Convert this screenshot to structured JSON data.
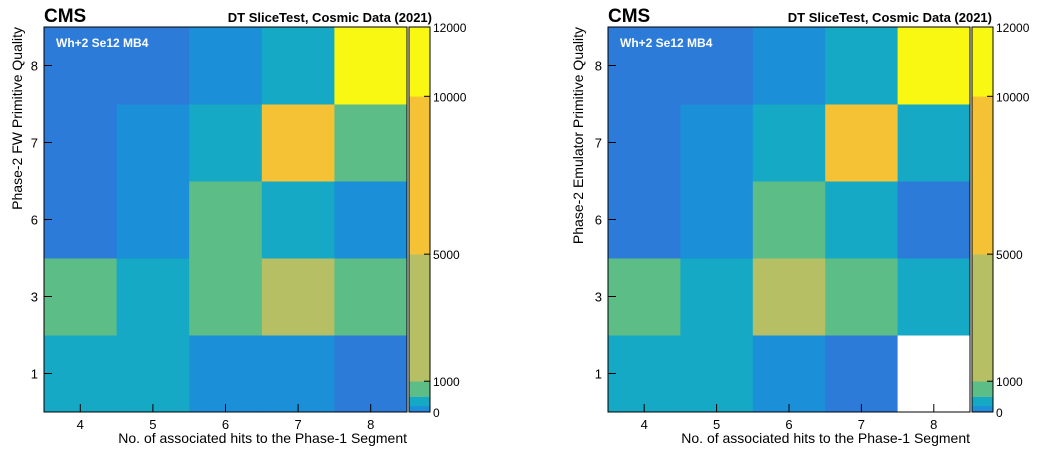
{
  "chart_data": [
    {
      "type": "heatmap",
      "experiment_label": "CMS",
      "header": "DT SliceTest, Cosmic Data (2021)",
      "tag": "Wh+2 Se12 MB4",
      "xlabel": "No. of associated hits to the Phase-1 Segment",
      "ylabel": "Phase-2 FW Primitive Quality",
      "x_categories": [
        "4",
        "5",
        "6",
        "7",
        "8"
      ],
      "y_categories": [
        "1",
        "3",
        "6",
        "7",
        "8"
      ],
      "z": [
        [
          600,
          600,
          350,
          350,
          150
        ],
        [
          1300,
          600,
          1300,
          2500,
          1300
        ],
        [
          120,
          250,
          1300,
          600,
          350
        ],
        [
          120,
          350,
          600,
          8000,
          1300
        ],
        [
          120,
          120,
          350,
          600,
          12000
        ]
      ],
      "zlim": [
        0,
        12000
      ],
      "colorbar_ticks": [
        "0",
        "1000",
        "5000",
        "10000",
        "12000"
      ]
    },
    {
      "type": "heatmap",
      "experiment_label": "CMS",
      "header": "DT SliceTest, Cosmic Data (2021)",
      "tag": "Wh+2 Se12 MB4",
      "xlabel": "No. of associated hits to the Phase-1 Segment",
      "ylabel": "Phase-2 Emulator Primitive Quality",
      "x_categories": [
        "4",
        "5",
        "6",
        "7",
        "8"
      ],
      "y_categories": [
        "1",
        "3",
        "6",
        "7",
        "8"
      ],
      "z": [
        [
          600,
          600,
          350,
          150,
          0
        ],
        [
          1300,
          600,
          2500,
          1300,
          600
        ],
        [
          120,
          350,
          1300,
          600,
          150
        ],
        [
          120,
          350,
          600,
          8000,
          600
        ],
        [
          120,
          120,
          350,
          600,
          12000
        ]
      ],
      "zlim": [
        0,
        12000
      ],
      "colorbar_ticks": [
        "0",
        "1000",
        "5000",
        "10000",
        "12000"
      ],
      "colors": {
        "cmap": [
          "#2c7bd9",
          "#1b8fd8",
          "#16a9c5",
          "#5dbd87",
          "#b7bf64",
          "#f5c236",
          "#f8f812"
        ]
      }
    }
  ]
}
